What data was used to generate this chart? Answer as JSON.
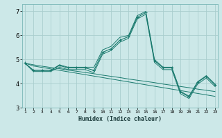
{
  "x": [
    1,
    2,
    3,
    4,
    5,
    6,
    7,
    8,
    9,
    10,
    11,
    12,
    13,
    14,
    15,
    16,
    17,
    18,
    19,
    20,
    21,
    22,
    23
  ],
  "line_main": [
    4.85,
    4.55,
    4.55,
    4.55,
    4.75,
    4.65,
    4.65,
    4.65,
    4.55,
    5.3,
    5.45,
    5.8,
    5.95,
    6.75,
    6.95,
    4.95,
    4.65,
    4.65,
    3.65,
    3.45,
    4.05,
    4.3,
    3.95
  ],
  "line_upper": [
    4.85,
    4.55,
    4.55,
    4.55,
    4.78,
    4.68,
    4.68,
    4.68,
    4.68,
    5.4,
    5.55,
    5.92,
    6.0,
    6.82,
    7.0,
    5.0,
    4.68,
    4.68,
    3.68,
    3.48,
    4.08,
    4.33,
    3.98
  ],
  "line_lower": [
    4.85,
    4.5,
    4.5,
    4.5,
    4.68,
    4.58,
    4.58,
    4.58,
    4.45,
    5.22,
    5.38,
    5.72,
    5.88,
    6.68,
    6.88,
    4.88,
    4.58,
    4.58,
    3.58,
    3.38,
    3.98,
    4.23,
    3.88
  ],
  "trend1": [
    4.85,
    4.78,
    4.72,
    4.67,
    4.62,
    4.56,
    4.51,
    4.46,
    4.41,
    4.35,
    4.3,
    4.25,
    4.19,
    4.14,
    4.09,
    4.04,
    3.98,
    3.93,
    3.88,
    3.83,
    3.77,
    3.72,
    3.67
  ],
  "trend2": [
    4.85,
    4.73,
    4.67,
    4.61,
    4.55,
    4.49,
    4.43,
    4.37,
    4.31,
    4.25,
    4.19,
    4.13,
    4.07,
    4.01,
    3.95,
    3.89,
    3.83,
    3.77,
    3.71,
    3.65,
    3.59,
    3.53,
    3.47
  ],
  "color_main": "#1a7a6e",
  "color_bg": "#cce8e8",
  "color_grid": "#aacece",
  "xlabel": "Humidex (Indice chaleur)",
  "ylim": [
    3.0,
    7.3
  ],
  "xlim_min": 0.7,
  "xlim_max": 23.3,
  "yticks": [
    3,
    4,
    5,
    6,
    7
  ],
  "xticks": [
    1,
    2,
    3,
    4,
    5,
    6,
    7,
    8,
    9,
    10,
    11,
    12,
    13,
    14,
    15,
    16,
    17,
    18,
    19,
    20,
    21,
    22,
    23
  ]
}
